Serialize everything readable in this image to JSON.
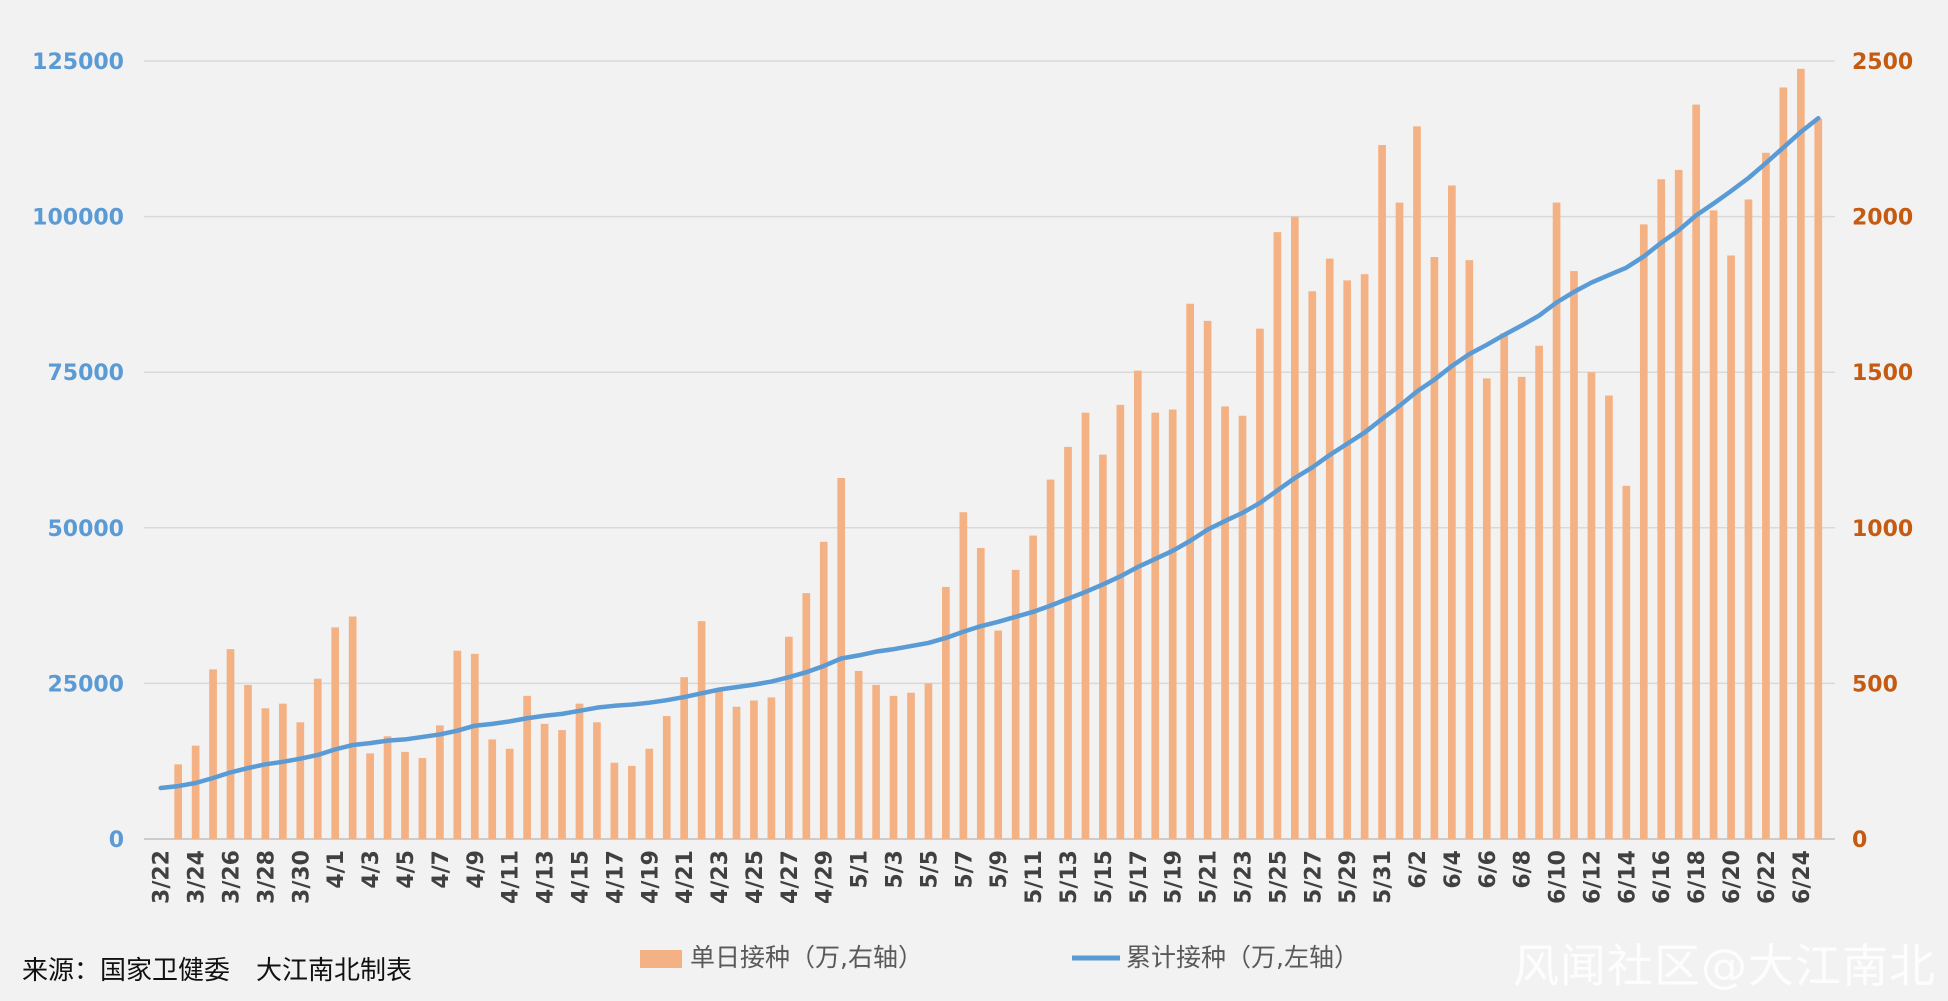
{
  "source_text": "来源：国家卫健委　大江南北制表",
  "watermark": "风闻社区@大江南北",
  "chart_data": {
    "type": "bar+line",
    "title": "",
    "colors": {
      "bar": "#f4b183",
      "line": "#5b9bd5",
      "left_axis": "#5b9bd5",
      "right_axis": "#c55a11"
    },
    "legend": {
      "position": "bottom-center",
      "entries": [
        {
          "name": "单日接种（万,右轴）",
          "type": "bar"
        },
        {
          "name": "累计接种（万,左轴）",
          "type": "line"
        }
      ]
    },
    "grid": true,
    "y_left": {
      "range": [
        0,
        125000
      ],
      "ticks": [
        0,
        25000,
        50000,
        75000,
        100000,
        125000
      ]
    },
    "y_right": {
      "range": [
        0,
        2500
      ],
      "ticks": [
        0,
        500,
        1000,
        1500,
        2000,
        2500
      ]
    },
    "categories": [
      "3/22",
      "3/23",
      "3/24",
      "3/25",
      "3/26",
      "3/27",
      "3/28",
      "3/29",
      "3/30",
      "3/31",
      "4/1",
      "4/2",
      "4/3",
      "4/4",
      "4/5",
      "4/6",
      "4/7",
      "4/8",
      "4/9",
      "4/10",
      "4/11",
      "4/12",
      "4/13",
      "4/14",
      "4/15",
      "4/16",
      "4/17",
      "4/18",
      "4/19",
      "4/20",
      "4/21",
      "4/22",
      "4/23",
      "4/24",
      "4/25",
      "4/26",
      "4/27",
      "4/28",
      "4/29",
      "4/30",
      "5/1",
      "5/2",
      "5/3",
      "5/4",
      "5/5",
      "5/6",
      "5/7",
      "5/8",
      "5/9",
      "5/10",
      "5/11",
      "5/12",
      "5/13",
      "5/14",
      "5/15",
      "5/16",
      "5/17",
      "5/18",
      "5/19",
      "5/20",
      "5/21",
      "5/22",
      "5/23",
      "5/24",
      "5/25",
      "5/26",
      "5/27",
      "5/28",
      "5/29",
      "5/30",
      "5/31",
      "6/1",
      "6/2",
      "6/3",
      "6/4",
      "6/5",
      "6/6",
      "6/7",
      "6/8",
      "6/9",
      "6/10",
      "6/11",
      "6/12",
      "6/13",
      "6/14",
      "6/15",
      "6/16",
      "6/17",
      "6/18",
      "6/19",
      "6/20",
      "6/21",
      "6/22",
      "6/23",
      "6/24",
      "6/25"
    ],
    "tick_labels": [
      "3/22",
      "3/24",
      "3/26",
      "3/28",
      "3/30",
      "4/1",
      "4/3",
      "4/5",
      "4/7",
      "4/9",
      "4/11",
      "4/13",
      "4/15",
      "4/17",
      "4/19",
      "4/21",
      "4/23",
      "4/25",
      "4/27",
      "4/29",
      "5/1",
      "5/3",
      "5/5",
      "5/7",
      "5/9",
      "5/11",
      "5/13",
      "5/15",
      "5/17",
      "5/19",
      "5/21",
      "5/23",
      "5/25",
      "5/27",
      "5/29",
      "5/31",
      "6/2",
      "6/4",
      "6/6",
      "6/8",
      "6/10",
      "6/12",
      "6/14",
      "6/16",
      "6/18",
      "6/20",
      "6/22",
      "6/24"
    ],
    "series": [
      {
        "name": "单日接种（万,右轴）",
        "type": "bar",
        "axis": "right",
        "values": [
          null,
          240,
          300,
          545,
          610,
          495,
          420,
          435,
          375,
          515,
          680,
          715,
          275,
          330,
          280,
          260,
          365,
          605,
          595,
          320,
          290,
          460,
          370,
          350,
          435,
          375,
          245,
          235,
          290,
          395,
          520,
          700,
          485,
          425,
          445,
          455,
          650,
          790,
          955,
          1160,
          540,
          495,
          460,
          470,
          500,
          810,
          1050,
          935,
          670,
          865,
          975,
          1155,
          1260,
          1370,
          1235,
          1395,
          1505,
          1370,
          1380,
          1720,
          1665,
          1390,
          1360,
          1640,
          1950,
          2000,
          1760,
          1865,
          1795,
          1815,
          2230,
          2045,
          2290,
          1870,
          2100,
          1860,
          1480,
          1625,
          1485,
          1585,
          2045,
          1825,
          1500,
          1425,
          1135,
          1975,
          2120,
          2150,
          2360,
          2020,
          1875,
          2055,
          2205,
          2415,
          2475,
          2315
        ]
      },
      {
        "name": "累计接种（万,左轴）",
        "type": "line",
        "axis": "left",
        "values": [
          8200,
          8500,
          9000,
          9800,
          10700,
          11400,
          12000,
          12400,
          12900,
          13500,
          14400,
          15100,
          15400,
          15800,
          16000,
          16400,
          16800,
          17400,
          18200,
          18500,
          18900,
          19400,
          19800,
          20100,
          20600,
          21100,
          21400,
          21600,
          21900,
          22300,
          22800,
          23400,
          24000,
          24400,
          24800,
          25300,
          26000,
          26800,
          27800,
          29000,
          29500,
          30100,
          30500,
          31000,
          31500,
          32300,
          33300,
          34200,
          34900,
          35700,
          36500,
          37500,
          38600,
          39700,
          40900,
          42200,
          43700,
          45000,
          46300,
          47900,
          49700,
          51100,
          52400,
          54000,
          56000,
          58000,
          59700,
          61700,
          63500,
          65300,
          67500,
          69600,
          71900,
          73800,
          76000,
          77900,
          79400,
          81000,
          82500,
          84100,
          86200,
          87900,
          89400,
          90600,
          91800,
          93600,
          95800,
          97800,
          100200,
          102100,
          104100,
          106200,
          108600,
          111100,
          113600,
          115800
        ]
      }
    ]
  }
}
